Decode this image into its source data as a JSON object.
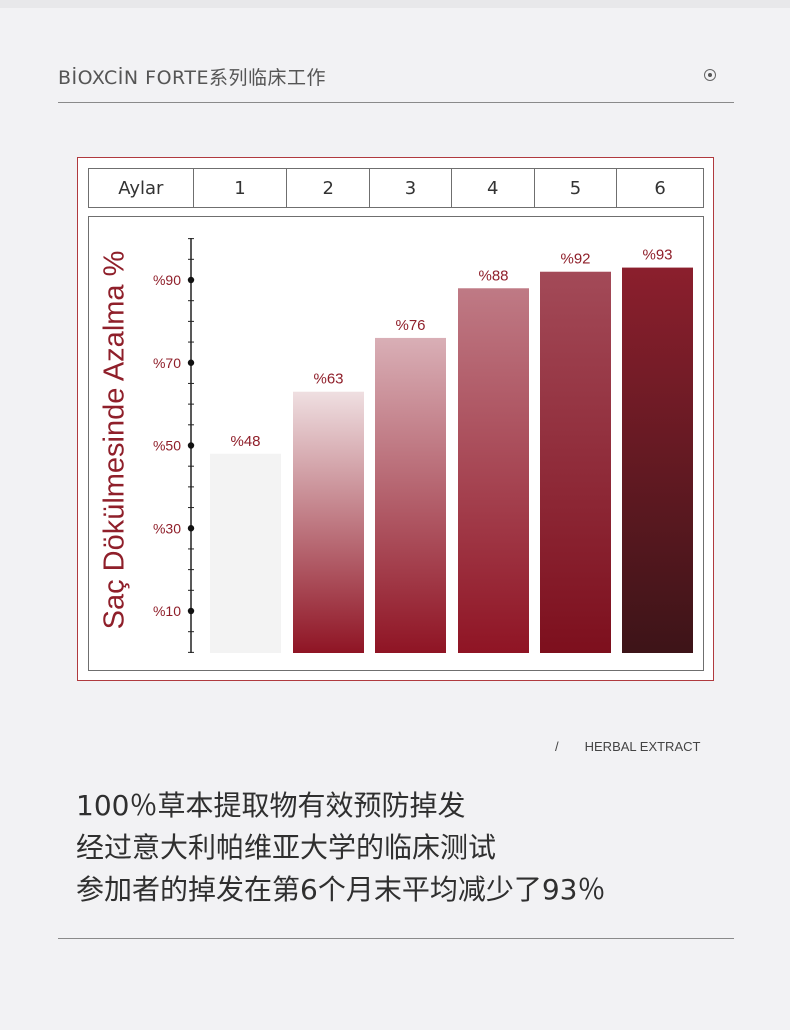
{
  "header": {
    "title": "BİOXCİN FORTE系列临床工作",
    "icon": "radio-target-icon"
  },
  "table": {
    "row_label": "Aylar",
    "months": [
      "1",
      "2",
      "3",
      "4",
      "5",
      "6"
    ]
  },
  "chart_data": {
    "type": "bar",
    "ylabel": "Saç Dökülmesinde Azalma %",
    "xlabel": "Aylar",
    "categories": [
      "1",
      "2",
      "3",
      "4",
      "5",
      "6"
    ],
    "values": [
      48,
      63,
      76,
      88,
      92,
      93
    ],
    "data_labels": [
      "%48",
      "%63",
      "%76",
      "%88",
      "%92",
      "%93"
    ],
    "yticks": [
      10,
      30,
      50,
      70,
      90
    ],
    "ytick_labels": [
      "%10",
      "%30",
      "%50",
      "%70",
      "%90"
    ],
    "ylim": [
      0,
      100
    ],
    "grid": false,
    "colors": {
      "label": "#8f1f2a",
      "bar_top": [
        "#f3f3f3",
        "#efdfe1",
        "#d9afb6",
        "#bf7a85",
        "#a34a58",
        "#8b1f2d"
      ],
      "bar_bottom": [
        "#f3f3f3",
        "#8f1424",
        "#8f1424",
        "#8f1424",
        "#7d0f1d",
        "#3d1418"
      ]
    }
  },
  "footer": {
    "slash": "/",
    "tag": "HERBAL EXTRACT",
    "lines": [
      "100％草本提取物有效预防掉发",
      "经过意大利帕维亚大学的临床测试",
      "参加者的掉发在第6个月末平均减少了93％"
    ]
  }
}
